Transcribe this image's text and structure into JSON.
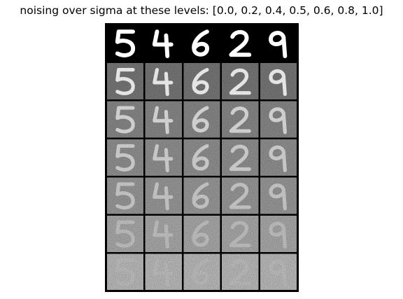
{
  "figure": {
    "title": "noising over sigma at these levels: [0.0, 0.2, 0.4, 0.5, 0.6, 0.8, 1.0]"
  },
  "grid": {
    "sigma_levels": [
      0.0,
      0.2,
      0.4,
      0.5,
      0.6,
      0.8,
      1.0
    ],
    "digits": [
      5,
      4,
      6,
      2,
      9
    ],
    "colors": {
      "background": "#000000",
      "separator": "#000000",
      "ink": "#ffffff"
    }
  }
}
